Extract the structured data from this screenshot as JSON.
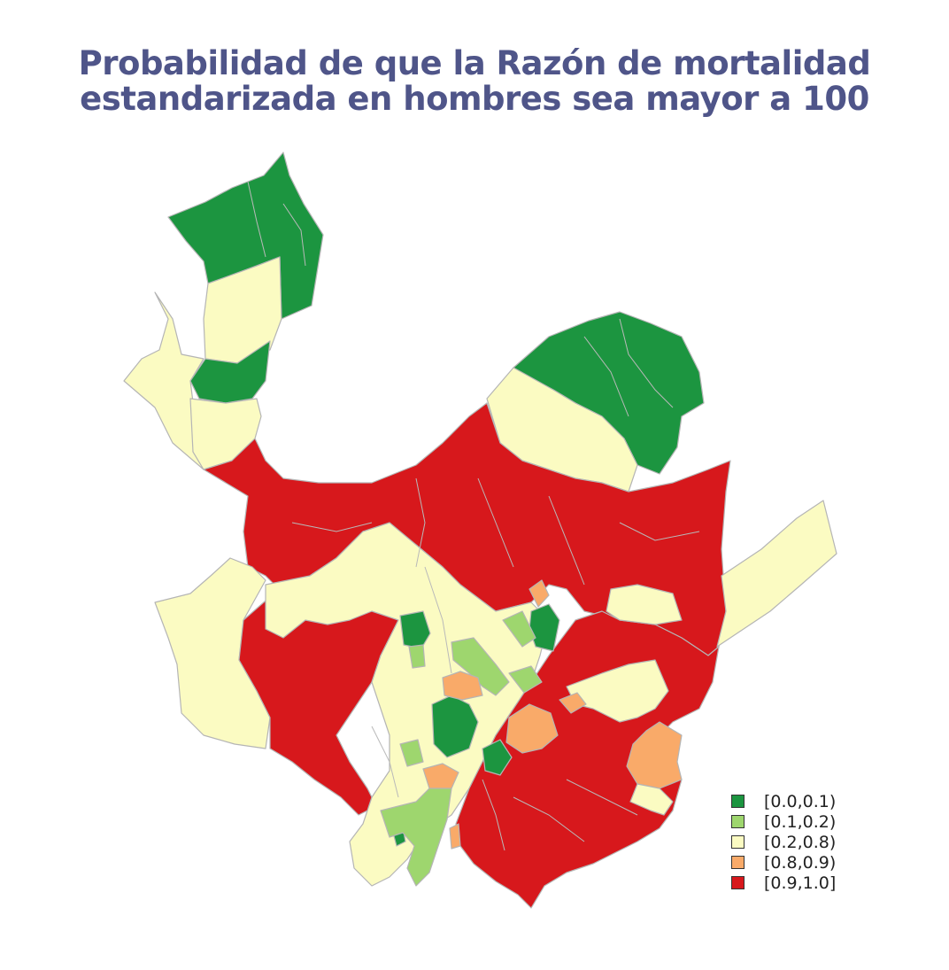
{
  "title": {
    "line1": "Probabilidad de que la Razón de mortalidad",
    "line2": "estandarizada en hombres sea mayor a 100"
  },
  "colors": {
    "c1": "#1c9540",
    "c2": "#9ed66e",
    "c3": "#fbfbc2",
    "c4": "#f9aa69",
    "c5": "#d7181c",
    "border": "#b9b9b9"
  },
  "legend": [
    {
      "label": "[0.0,0.1)",
      "color": "#1c9540"
    },
    {
      "label": "[0.1,0.2)",
      "color": "#9ed66e"
    },
    {
      "label": "[0.2,0.8)",
      "color": "#fbfbc2"
    },
    {
      "label": "[0.8,0.9)",
      "color": "#f9aa69"
    },
    {
      "label": "[0.9,1.0]",
      "color": "#d7181c"
    }
  ]
}
